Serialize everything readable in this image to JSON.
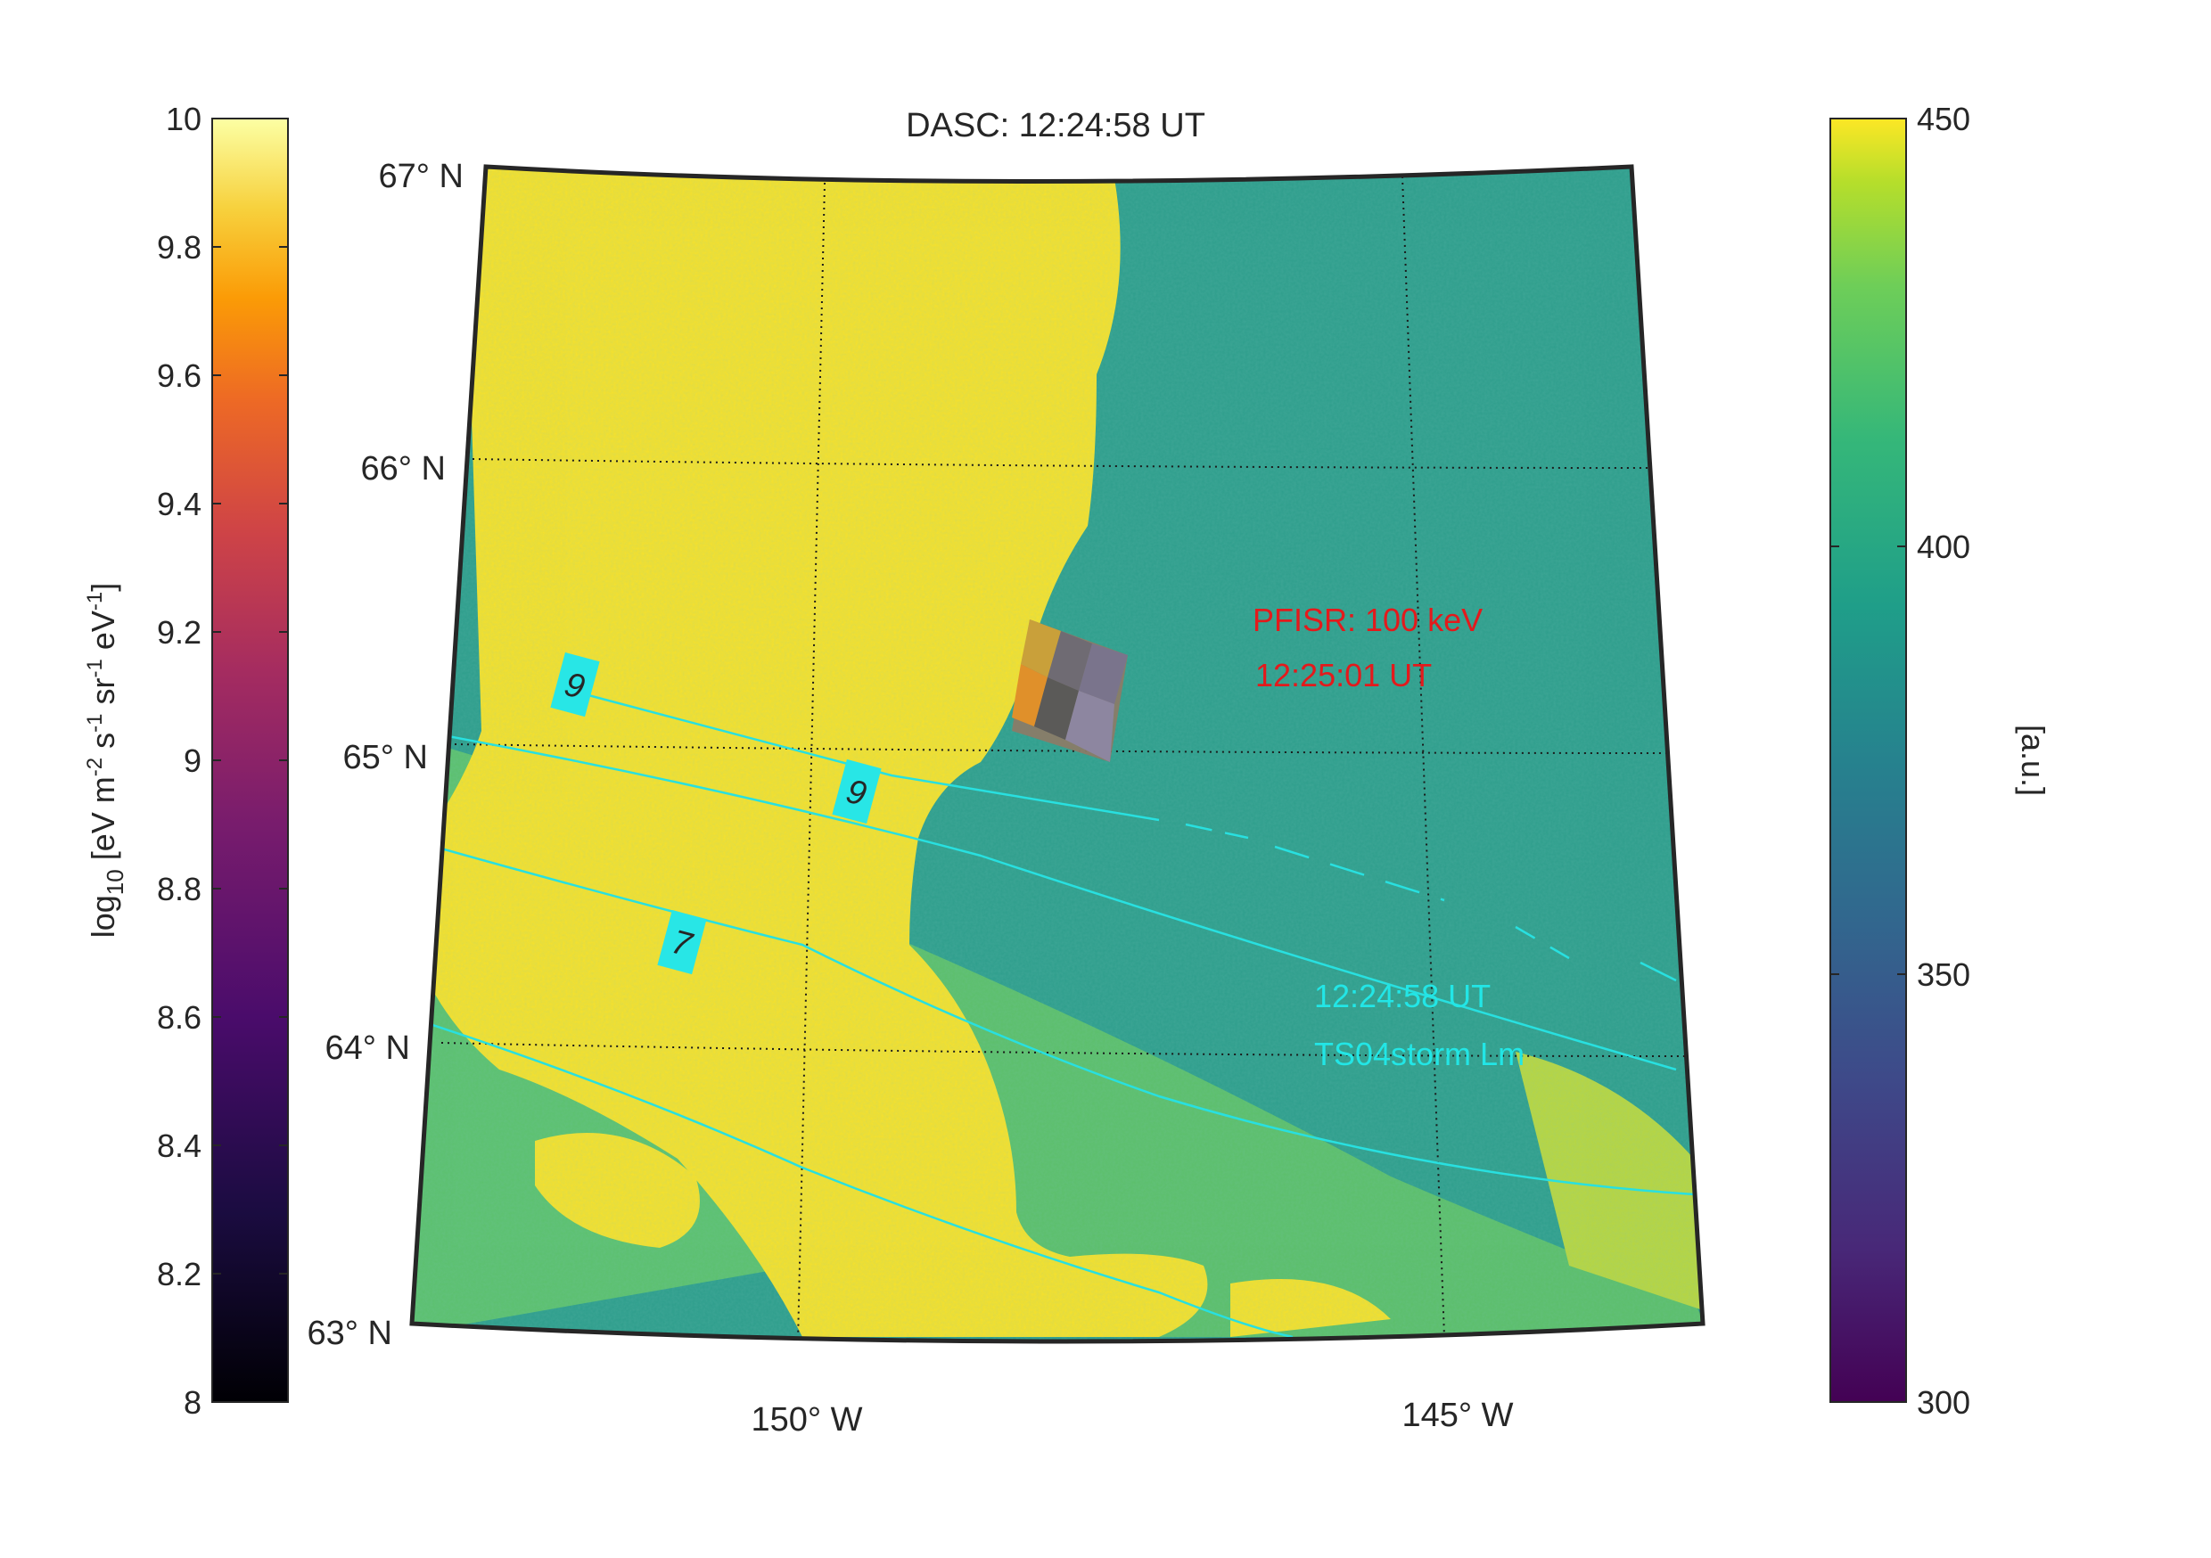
{
  "title": "DASC: 12:24:58 UT",
  "lat_labels": [
    "67° N",
    "66° N",
    "65° N",
    "64° N",
    "63° N"
  ],
  "lon_labels": [
    "150° W",
    "145° W"
  ],
  "left_colorbar": {
    "label_main": "log",
    "label_sub": "10",
    "label_units": "[eV m",
    "label_units_parts": [
      "-2",
      " s",
      "-1",
      " sr",
      "-1",
      " eV",
      "-1",
      "]"
    ],
    "ticks": [
      "10",
      "9.8",
      "9.6",
      "9.4",
      "9.2",
      "9",
      "8.8",
      "8.6",
      "8.4",
      "8.2",
      "8"
    ],
    "colormap": "inferno",
    "range": [
      8,
      10
    ]
  },
  "right_colorbar": {
    "label": "[a.u.]",
    "ticks": [
      "450",
      "400",
      "350",
      "300"
    ],
    "colormap": "viridis",
    "range": [
      300,
      450
    ]
  },
  "pfisr": {
    "line1": "PFISR: 100 keV",
    "line2": "12:25:01 UT",
    "color": "#e31a1c"
  },
  "model": {
    "line1": "12:24:58 UT",
    "line2": "TS04storm Lm",
    "color": "#22e6e6"
  },
  "contour_labels": [
    "9",
    "9",
    "7"
  ],
  "colors": {
    "aurora_bright": "#f7e12a",
    "background_teal": "#2e9e8c",
    "contour": "#28e0e0",
    "frame": "#262626"
  }
}
